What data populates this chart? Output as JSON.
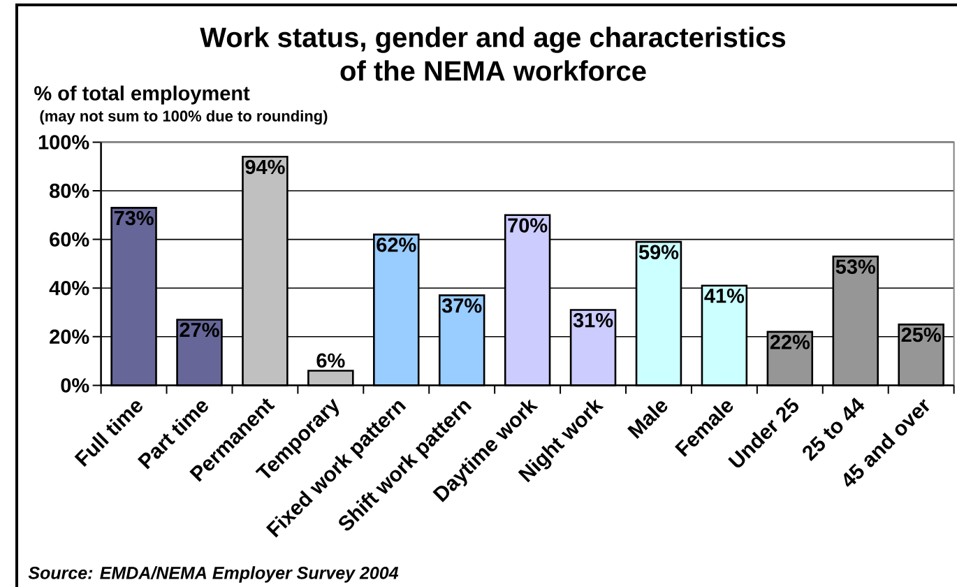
{
  "chart_data": {
    "type": "bar",
    "title": "Work status, gender and age characteristics of the NEMA workforce",
    "ylabel": "% of total employment",
    "annotations": [
      "(may not sum to 100% due to rounding)",
      "Source: EMDA/NEMA Employer Survey 2004"
    ],
    "categories": [
      "Full time",
      "Part time",
      "Permanent",
      "Temporary",
      "Fixed work pattern",
      "Shift work pattern",
      "Daytime work",
      "Night work",
      "Male",
      "Female",
      "Under 25",
      "25 to 44",
      "45 and over"
    ],
    "values": [
      73,
      27,
      94,
      6,
      62,
      37,
      70,
      31,
      59,
      41,
      22,
      53,
      25
    ],
    "value_labels": [
      "73%",
      "27%",
      "94%",
      "6%",
      "62%",
      "37%",
      "70%",
      "31%",
      "59%",
      "41%",
      "22%",
      "53%",
      "25%"
    ],
    "colors": [
      "#666699",
      "#666699",
      "#c0c0c0",
      "#c0c0c0",
      "#99ccff",
      "#99ccff",
      "#ccccff",
      "#ccccff",
      "#ccffff",
      "#ccffff",
      "#969696",
      "#969696",
      "#969696"
    ],
    "ylim": [
      0,
      100
    ],
    "yticks": [
      {
        "value": 0,
        "label": "0%"
      },
      {
        "value": 20,
        "label": "20%"
      },
      {
        "value": 40,
        "label": "40%"
      },
      {
        "value": 60,
        "label": "60%"
      },
      {
        "value": 80,
        "label": "80%"
      },
      {
        "value": 100,
        "label": "100%"
      }
    ],
    "grid": "y"
  }
}
